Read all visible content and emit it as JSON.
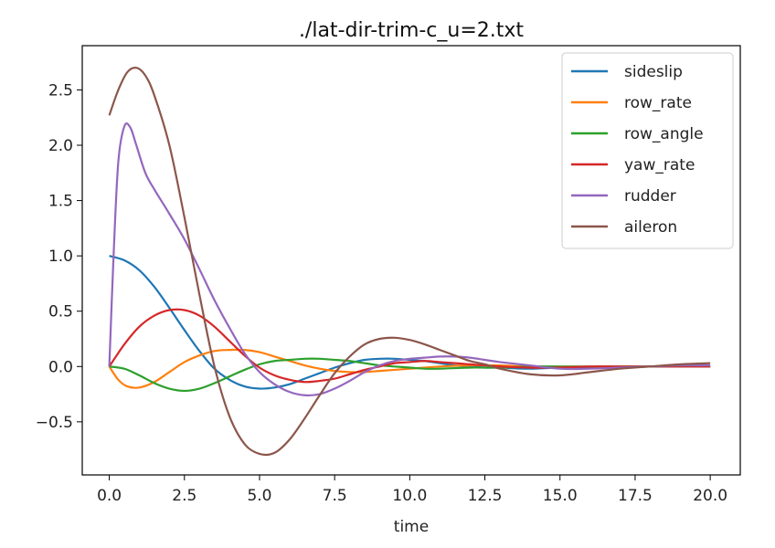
{
  "chart_data": {
    "type": "line",
    "title": "./lat-dir-trim-c_u=2.txt",
    "xlabel": "time",
    "ylabel": "",
    "xlim": [
      -0.9,
      21.0
    ],
    "ylim": [
      -0.98,
      2.9
    ],
    "xticks": [
      0.0,
      2.5,
      5.0,
      7.5,
      10.0,
      12.5,
      15.0,
      17.5,
      20.0
    ],
    "xtick_labels": [
      "0.0",
      "2.5",
      "5.0",
      "7.5",
      "10.0",
      "12.5",
      "15.0",
      "17.5",
      "20.0"
    ],
    "yticks": [
      -0.5,
      0.0,
      0.5,
      1.0,
      1.5,
      2.0,
      2.5
    ],
    "ytick_labels": [
      "−0.5",
      "0.0",
      "0.5",
      "1.0",
      "1.5",
      "2.0",
      "2.5"
    ],
    "grid": false,
    "legend_position": "top-right",
    "series": [
      {
        "name": "sideslip",
        "color": "#1f77b4",
        "x": [
          0,
          0.5,
          1,
          1.5,
          2,
          2.5,
          3,
          3.5,
          4,
          4.5,
          5,
          5.5,
          6,
          6.5,
          7,
          7.5,
          8,
          8.5,
          9,
          9.5,
          10,
          10.5,
          11,
          11.5,
          12,
          12.5,
          13,
          14,
          15,
          16,
          17,
          18,
          19,
          20
        ],
        "y": [
          1.0,
          0.96,
          0.87,
          0.72,
          0.53,
          0.33,
          0.14,
          -0.02,
          -0.12,
          -0.18,
          -0.2,
          -0.19,
          -0.16,
          -0.11,
          -0.06,
          -0.01,
          0.03,
          0.06,
          0.07,
          0.07,
          0.06,
          0.05,
          0.03,
          0.01,
          0.0,
          -0.01,
          -0.01,
          -0.02,
          -0.01,
          -0.01,
          0.0,
          0.0,
          0.0,
          0.0
        ]
      },
      {
        "name": "row_rate",
        "color": "#ff7f0e",
        "x": [
          0,
          0.3,
          0.6,
          1,
          1.5,
          2,
          2.5,
          3,
          3.5,
          4,
          4.5,
          5,
          5.5,
          6,
          6.5,
          7,
          7.5,
          8,
          8.5,
          9,
          9.5,
          10,
          10.5,
          11,
          12,
          13,
          14,
          15,
          16,
          17,
          18,
          19,
          20
        ],
        "y": [
          0.0,
          -0.12,
          -0.18,
          -0.19,
          -0.14,
          -0.05,
          0.04,
          0.1,
          0.14,
          0.15,
          0.15,
          0.13,
          0.09,
          0.05,
          0.01,
          -0.02,
          -0.04,
          -0.05,
          -0.05,
          -0.04,
          -0.03,
          -0.02,
          -0.01,
          0.0,
          0.01,
          0.01,
          0.0,
          0.0,
          0.0,
          0.0,
          0.0,
          0.0,
          0.0
        ]
      },
      {
        "name": "row_angle",
        "color": "#2ca02c",
        "x": [
          0,
          0.5,
          1,
          1.5,
          2,
          2.5,
          3,
          3.5,
          4,
          4.5,
          5,
          5.5,
          6,
          6.5,
          7,
          7.5,
          8,
          8.5,
          9,
          9.5,
          10,
          10.5,
          11,
          12,
          13,
          14,
          15,
          16,
          17,
          18,
          19,
          20
        ],
        "y": [
          0.0,
          -0.02,
          -0.08,
          -0.15,
          -0.2,
          -0.22,
          -0.2,
          -0.15,
          -0.09,
          -0.03,
          0.02,
          0.05,
          0.06,
          0.07,
          0.07,
          0.06,
          0.05,
          0.03,
          0.01,
          0.0,
          -0.01,
          -0.02,
          -0.02,
          -0.01,
          -0.01,
          0.0,
          0.0,
          0.0,
          0.0,
          0.0,
          0.0,
          0.0
        ]
      },
      {
        "name": "yaw_rate",
        "color": "#d62728",
        "x": [
          0,
          0.5,
          1,
          1.5,
          2,
          2.5,
          3,
          3.5,
          4,
          4.5,
          5,
          5.5,
          6,
          6.5,
          7,
          7.5,
          8,
          8.5,
          9,
          9.5,
          10,
          10.5,
          11,
          11.5,
          12,
          13,
          14,
          15,
          16,
          17,
          18,
          19,
          20
        ],
        "y": [
          0.0,
          0.2,
          0.36,
          0.46,
          0.51,
          0.51,
          0.46,
          0.36,
          0.23,
          0.1,
          -0.01,
          -0.08,
          -0.12,
          -0.14,
          -0.13,
          -0.11,
          -0.07,
          -0.03,
          0.0,
          0.03,
          0.04,
          0.05,
          0.04,
          0.03,
          0.02,
          0.0,
          -0.01,
          -0.01,
          0.0,
          0.0,
          0.0,
          0.0,
          0.0
        ]
      },
      {
        "name": "rudder",
        "color": "#9467bd",
        "x": [
          0,
          0.15,
          0.3,
          0.5,
          0.7,
          0.9,
          1.2,
          1.5,
          2,
          2.5,
          3,
          3.5,
          4,
          4.5,
          5,
          5.5,
          6,
          6.5,
          7,
          7.5,
          8,
          8.5,
          9,
          9.5,
          10,
          10.5,
          11,
          11.5,
          12,
          12.5,
          13,
          14,
          15,
          16,
          17,
          18,
          19,
          20
        ],
        "y": [
          0.0,
          1.05,
          1.85,
          2.17,
          2.16,
          2.0,
          1.75,
          1.6,
          1.38,
          1.15,
          0.88,
          0.6,
          0.35,
          0.12,
          -0.05,
          -0.16,
          -0.23,
          -0.26,
          -0.25,
          -0.2,
          -0.13,
          -0.05,
          0.01,
          0.05,
          0.07,
          0.08,
          0.09,
          0.09,
          0.08,
          0.06,
          0.04,
          0.01,
          -0.02,
          -0.02,
          -0.01,
          0.0,
          0.01,
          0.01
        ]
      },
      {
        "name": "aileron",
        "color": "#8c564b",
        "x": [
          0,
          0.3,
          0.6,
          0.9,
          1.2,
          1.5,
          2,
          2.5,
          3,
          3.5,
          4,
          4.5,
          5,
          5.5,
          6,
          6.5,
          7,
          7.5,
          8,
          8.5,
          9,
          9.5,
          10,
          10.5,
          11,
          11.5,
          12,
          12.5,
          13,
          14,
          15,
          16,
          17,
          18,
          19,
          20
        ],
        "y": [
          2.27,
          2.5,
          2.66,
          2.7,
          2.63,
          2.45,
          2.0,
          1.35,
          0.65,
          0.0,
          -0.45,
          -0.7,
          -0.79,
          -0.78,
          -0.66,
          -0.47,
          -0.26,
          -0.06,
          0.09,
          0.2,
          0.25,
          0.26,
          0.24,
          0.2,
          0.15,
          0.1,
          0.05,
          0.02,
          -0.02,
          -0.07,
          -0.08,
          -0.05,
          -0.02,
          0.0,
          0.02,
          0.03
        ]
      }
    ]
  }
}
